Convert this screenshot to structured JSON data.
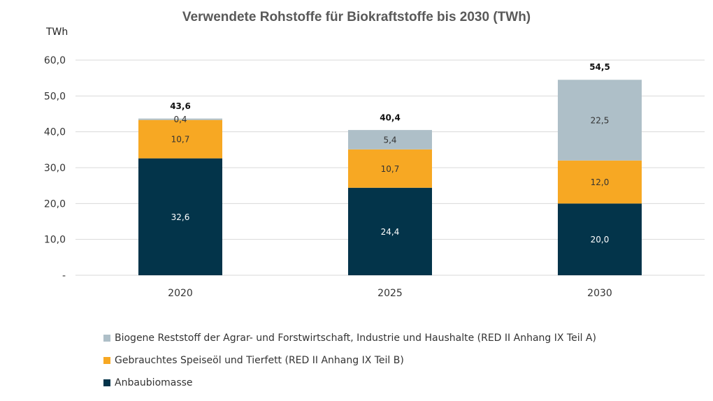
{
  "chart_data": {
    "type": "bar",
    "stacked": true,
    "title": "Verwendete Rohstoffe für Biokraftstoffe bis 2030 (TWh)",
    "ylabel": "TWh",
    "ylim": [
      0,
      60
    ],
    "yticks": [
      "-",
      "10,0",
      "20,0",
      "30,0",
      "40,0",
      "50,0",
      "60,0"
    ],
    "categories": [
      "2020",
      "2025",
      "2030"
    ],
    "totals": [
      43.6,
      40.4,
      54.5
    ],
    "total_labels": [
      "43,6",
      "40,4",
      "54,5"
    ],
    "grid": true,
    "legend_position": "bottom",
    "series": [
      {
        "name": "Anbaubiomasse",
        "color": "#03344a",
        "label_color": "#ffffff",
        "values": [
          32.6,
          24.4,
          20.0
        ],
        "labels": [
          "32,6",
          "24,4",
          "20,0"
        ]
      },
      {
        "name": "Gebrauchtes Speiseöl und Tierfett (RED II Anhang IX Teil B)",
        "color": "#f7a823",
        "label_color": "#333333",
        "values": [
          10.7,
          10.7,
          12.0
        ],
        "labels": [
          "10,7",
          "10,7",
          "12,0"
        ]
      },
      {
        "name": "Biogene Reststoff der Agrar- und Forstwirtschaft, Industrie und Haushalte (RED II Anhang IX Teil A)",
        "color": "#aebfc8",
        "label_color": "#333333",
        "values": [
          0.4,
          5.4,
          22.5
        ],
        "labels": [
          "0,4",
          "5,4",
          "22,5"
        ]
      }
    ]
  }
}
